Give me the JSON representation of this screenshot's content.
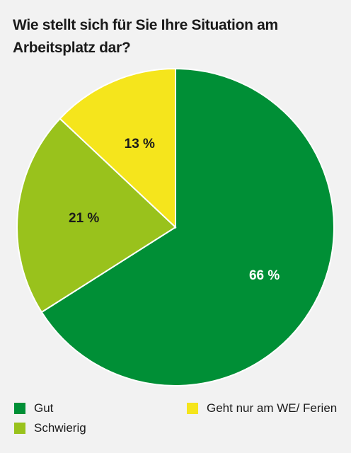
{
  "chart_data": {
    "type": "pie",
    "title": "Wie stellt sich für Sie Ihre Situation am Arbeitsplatz dar?",
    "slices": [
      {
        "name": "Gut",
        "value": 66,
        "label": "66 %",
        "color": "#008f36",
        "label_color": "#ffffff"
      },
      {
        "name": "Schwierig",
        "value": 21,
        "label": "21 %",
        "color": "#99c21c",
        "label_color": "#1a1a1a"
      },
      {
        "name": "Geht nur am WE/ Ferien",
        "value": 13,
        "label": "13 %",
        "color": "#f5e51c",
        "label_color": "#1a1a1a"
      }
    ],
    "start_angle_deg": 0,
    "direction": "clockwise",
    "legend_position": "bottom"
  }
}
